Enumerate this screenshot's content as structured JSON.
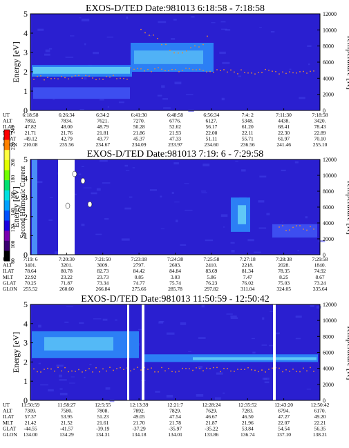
{
  "chart_data": [
    {
      "type": "heatmap",
      "title": "EXOS-D/TED   Date:981013  6:18:58 - 7:18:58",
      "ylabel_left": "Energy [eV]",
      "ylabel_right": "Temperature [K]",
      "ylim_left": [
        0,
        5
      ],
      "ylim_right": [
        0,
        12000
      ],
      "yticks_left": [
        "0",
        "1",
        "2",
        "3",
        "4",
        "5"
      ],
      "yticks_right": [
        "0",
        "2000",
        "4000",
        "6000",
        "8000",
        "10000",
        "12000"
      ],
      "row_labels": [
        "UT",
        "ALT",
        "ILAT",
        "MLT",
        "GLAT",
        "GLON"
      ],
      "columns": [
        [
          "6:18:58",
          "7892.",
          "47.82",
          "21.71",
          "-49.12",
          "210.08"
        ],
        [
          "6:26:34",
          "7834.",
          "48.00",
          "21.76",
          "42.79",
          "235.56"
        ],
        [
          "6:34:2",
          "7621.",
          "48.79",
          "21.81",
          "43.77",
          "234.67"
        ],
        [
          "6:41:30",
          "7270.",
          "50.28",
          "21.86",
          "45.37",
          "234.09"
        ],
        [
          "6:48:58",
          "6776.",
          "52.62",
          "21.93",
          "47.33",
          "233.97"
        ],
        [
          "6:56:34",
          "6127.",
          "56.17",
          "22.00",
          "51.11",
          "234.60"
        ],
        [
          "7:4: 2",
          "5348.",
          "61.20",
          "22.11",
          "55.71",
          "236.56"
        ],
        [
          "7:11:30",
          "4438.",
          "68.41",
          "22.30",
          "61.97",
          "241.46"
        ],
        [
          "7:18:58",
          "3420.",
          "78.43",
          "22.89",
          "70.10",
          "255.10"
        ]
      ]
    },
    {
      "type": "heatmap",
      "title": "EXOS-D/TED   Date:981013  7:19: 6 - 7:29:58",
      "ylabel_left": "Energy [eV]",
      "ylabel_right": "Temperature [K]",
      "colorbar_label": "Second Harmonic Current",
      "colorbar_ticks": [
        "80",
        "100",
        "120",
        "140",
        "160",
        "180",
        "200",
        "220",
        "240"
      ],
      "ylim_left": [
        0,
        5
      ],
      "ylim_right": [
        0,
        12000
      ],
      "yticks_left": [
        "0",
        "1",
        "2",
        "3",
        "4",
        "5"
      ],
      "yticks_right": [
        "0",
        "2000",
        "4000",
        "6000",
        "8000",
        "10000",
        "12000"
      ],
      "row_labels": [
        "UT",
        "ALT",
        "ILAT",
        "MLT",
        "GLAT",
        "GLON"
      ],
      "columns": [
        [
          "7:19: 6",
          "3401.",
          "78.64",
          "22.92",
          "70.25",
          "255.52"
        ],
        [
          "7:20:30",
          "3201.",
          "80.78",
          "23.22",
          "71.87",
          "260.60"
        ],
        [
          "7:21:50",
          "3009.",
          "82.73",
          "23.73",
          "73.34",
          "266.84"
        ],
        [
          "7:23:18",
          "2797.",
          "84.42",
          "0.85",
          "74.77",
          "275.66"
        ],
        [
          "7:24:38",
          "2603.",
          "84.84",
          "3.03",
          "75.74",
          "285.78"
        ],
        [
          "7:25:58",
          "2410.",
          "83.69",
          "5.86",
          "76.23",
          "297.82"
        ],
        [
          "7:27:18",
          "2218.",
          "81.34",
          "7.47",
          "76.02",
          "311.04"
        ],
        [
          "7:28:38",
          "2028.",
          "78.35",
          "8.25",
          "75.03",
          "324.05"
        ],
        [
          "7:29:58",
          "1840.",
          "74.92",
          "8.67",
          "73.24",
          "335.64"
        ]
      ]
    },
    {
      "type": "heatmap",
      "title": "EXOS-D/TED   Date:981013  11:50:59 - 12:50:42",
      "ylabel_left": "Energy [eV]",
      "ylabel_right": "Temperature [K]",
      "ylim_left": [
        0,
        5
      ],
      "ylim_right": [
        0,
        12000
      ],
      "yticks_left": [
        "0",
        "1",
        "2",
        "3",
        "4",
        "5"
      ],
      "yticks_right": [
        "0",
        "2000",
        "4000",
        "6000",
        "8000",
        "10000",
        "12000"
      ],
      "row_labels": [
        "UT",
        "ALT",
        "ILAT",
        "MLT",
        "GLAT",
        "GLON"
      ],
      "columns": [
        [
          "11:50:59",
          "7309.",
          "57.37",
          "21.42",
          "-44.55",
          "134.00"
        ],
        [
          "11:58:27",
          "7580.",
          "53.95",
          "21.52",
          "-41.57",
          "134.29"
        ],
        [
          "12:5:55",
          "7808.",
          "51.23",
          "21.61",
          "-39.19",
          "134.31"
        ],
        [
          "12:13:39",
          "7892.",
          "49.05",
          "21.70",
          "-37.29",
          "134.18"
        ],
        [
          "12:21:7",
          "7829.",
          "47.54",
          "21.78",
          "-35.97",
          "134.01"
        ],
        [
          "12:28:24",
          "7629.",
          "46.67",
          "21.87",
          "-35.22",
          "133.86"
        ],
        [
          "12:35:52",
          "7283.",
          "46.50",
          "21.96",
          "53.84",
          "136.74"
        ],
        [
          "12:43:20",
          "6794.",
          "47.27",
          "22.07",
          "54.54",
          "137.10"
        ],
        [
          "12:50:42",
          "6170.",
          "49.20",
          "22.21",
          "56.35",
          "138.21"
        ]
      ]
    }
  ],
  "colors": {
    "background": "#2a1fd0",
    "band_light": "#2c7ff5",
    "band_core": "#5fc8f6",
    "temperature_dots": "#e58a3a",
    "colorbar": [
      "#000000",
      "#3a0070",
      "#7a00b0",
      "#1a00e0",
      "#0050ff",
      "#00a0ff",
      "#00e0e0",
      "#00e070",
      "#70ff00",
      "#e0ff00",
      "#ffff40",
      "#ff8000",
      "#ff0000"
    ]
  }
}
